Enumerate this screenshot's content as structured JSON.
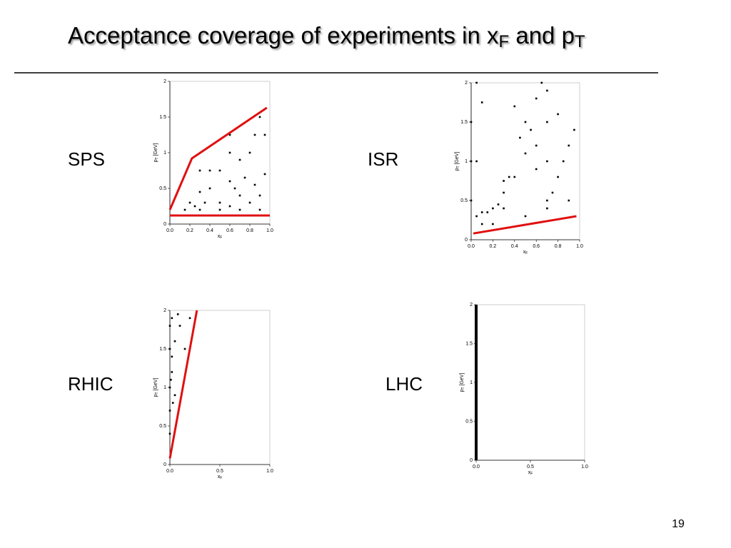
{
  "title": [
    "Acceptance coverage of experiments in x",
    "F",
    " and p",
    "T"
  ],
  "page_number": "19",
  "chart_data": [
    {
      "type": "scatter",
      "name": "SPS",
      "xlabel": [
        "x",
        "F"
      ],
      "ylabel": [
        "p",
        "T",
        " [GeV]"
      ],
      "xlim": [
        0,
        1
      ],
      "ylim": [
        0,
        2
      ],
      "xticks": [
        {
          "value": 0,
          "label": "0.0"
        },
        {
          "value": 0.2,
          "label": "0.2"
        },
        {
          "value": 0.4,
          "label": "0.4"
        },
        {
          "value": 0.6,
          "label": "0.6"
        },
        {
          "value": 0.8,
          "label": "0.8"
        },
        {
          "value": 1,
          "label": "1.0"
        }
      ],
      "yticks": [
        0,
        0.5,
        1,
        1.5,
        2
      ],
      "series": [
        {
          "kind": "points",
          "color": "#000000",
          "x": [
            0.15,
            0.2,
            0.25,
            0.3,
            0.3,
            0.35,
            0.4,
            0.4,
            0.5,
            0.5,
            0.6,
            0.6,
            0.6,
            0.65,
            0.7,
            0.7,
            0.75,
            0.8,
            0.8,
            0.85,
            0.85,
            0.9,
            0.9,
            0.95,
            0.95,
            0.3,
            0.5,
            0.7,
            0.9,
            0.6
          ],
          "values": [
            0.2,
            0.3,
            0.25,
            0.45,
            0.75,
            0.3,
            0.5,
            0.75,
            0.3,
            0.75,
            0.25,
            0.6,
            1.0,
            0.5,
            0.4,
            0.9,
            0.65,
            0.3,
            1.0,
            0.55,
            1.25,
            0.4,
            1.5,
            0.7,
            1.25,
            0.2,
            0.2,
            0.2,
            0.2,
            1.25
          ]
        },
        {
          "kind": "line",
          "color": "#e01010",
          "x": [
            0,
            0.22,
            0.97
          ],
          "values": [
            0.2,
            0.92,
            1.63
          ]
        },
        {
          "kind": "line",
          "color": "#e01010",
          "x": [
            0,
            1
          ],
          "values": [
            0.12,
            0.12
          ]
        }
      ]
    },
    {
      "type": "scatter",
      "name": "ISR",
      "xlabel": [
        "x",
        "F"
      ],
      "ylabel": [
        "p",
        "T",
        " [GeV]"
      ],
      "xlim": [
        0,
        1
      ],
      "ylim": [
        0,
        2
      ],
      "xticks": [
        {
          "value": 0,
          "label": "0.0"
        },
        {
          "value": 0.2,
          "label": "0.2"
        },
        {
          "value": 0.4,
          "label": "0.4"
        },
        {
          "value": 0.6,
          "label": "0.6"
        },
        {
          "value": 0.8,
          "label": "0.8"
        },
        {
          "value": 1,
          "label": "1.0"
        }
      ],
      "yticks": [
        0,
        0.5,
        1,
        1.5,
        2
      ],
      "series": [
        {
          "kind": "points",
          "color": "#000000",
          "x": [
            0,
            0,
            0,
            0.05,
            0.05,
            0.1,
            0.1,
            0.15,
            0.2,
            0.25,
            0.3,
            0.35,
            0.4,
            0.3,
            0.45,
            0.5,
            0.55,
            0.6,
            0.65,
            0.7,
            0.7,
            0.7,
            0.7,
            0.75,
            0.8,
            0.85,
            0.9,
            0.95,
            0.4,
            0.5,
            0.6,
            0.1,
            0.2,
            0.3,
            0.5,
            0.6,
            0.9,
            0.8,
            0.7,
            0.05
          ],
          "values": [
            0.5,
            1.0,
            1.5,
            2.0,
            0.3,
            0.35,
            1.75,
            0.35,
            0.4,
            0.45,
            0.75,
            0.8,
            0.8,
            0.6,
            1.3,
            1.5,
            1.4,
            1.2,
            2.0,
            1.0,
            1.5,
            0.5,
            1.9,
            0.6,
            0.8,
            1.0,
            1.2,
            1.4,
            1.7,
            1.1,
            0.9,
            0.2,
            0.2,
            0.4,
            0.3,
            1.8,
            0.5,
            1.6,
            0.4,
            1.0
          ]
        },
        {
          "kind": "line",
          "color": "#e01010",
          "x": [
            0.02,
            0.97
          ],
          "values": [
            0.08,
            0.3
          ]
        }
      ]
    },
    {
      "type": "scatter",
      "name": "RHIC",
      "xlabel": [
        "x",
        "F"
      ],
      "ylabel": [
        "p",
        "T",
        " [GeV]"
      ],
      "xlim": [
        0,
        1
      ],
      "ylim": [
        0,
        2
      ],
      "xticks": [
        {
          "value": 0,
          "label": "0.0"
        },
        0.5,
        {
          "value": 1,
          "label": "1.0"
        }
      ],
      "yticks": [
        0,
        0.5,
        1,
        1.5,
        2
      ],
      "series": [
        {
          "kind": "points",
          "color": "#000000",
          "x": [
            0,
            0,
            0,
            0,
            0.02,
            0.02,
            0.05,
            0.05,
            0.08,
            0.1,
            0,
            0.02,
            0.15,
            0.2,
            0.03,
            0.01
          ],
          "values": [
            1.8,
            1.5,
            1.0,
            0.7,
            1.9,
            1.2,
            1.6,
            0.9,
            1.95,
            1.8,
            0.4,
            1.4,
            1.5,
            1.9,
            0.8,
            1.1
          ]
        },
        {
          "kind": "line",
          "color": "#e01010",
          "x": [
            0,
            0.27
          ],
          "values": [
            0.08,
            2
          ]
        }
      ]
    },
    {
      "type": "scatter",
      "name": "LHC",
      "xlabel": [
        "x",
        "F"
      ],
      "ylabel": [
        "p",
        "T",
        " [GeV]"
      ],
      "xlim": [
        0,
        1
      ],
      "ylim": [
        0,
        2
      ],
      "xticks": [
        {
          "value": 0,
          "label": "0.0"
        },
        0.5,
        {
          "value": 1,
          "label": "1.0"
        }
      ],
      "yticks": [
        0,
        0.5,
        1,
        1.5,
        2
      ],
      "series": [
        {
          "kind": "line",
          "color": "#000000",
          "x": [
            0,
            0
          ],
          "values": [
            0,
            2
          ]
        }
      ]
    }
  ]
}
